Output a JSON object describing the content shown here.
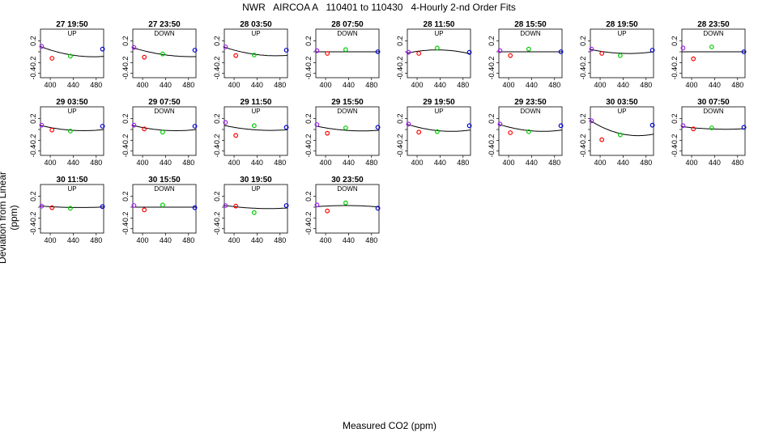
{
  "title": "NWR   AIRCOA A   110401 to 110430   4-Hourly 2-nd Order Fits",
  "chart_data": {
    "type": "scatter",
    "xlabel": "Measured CO2 (ppm)",
    "ylabel": "Deviation from Linear (ppm)",
    "xlim": [
      383,
      493
    ],
    "ylim": [
      -0.48,
      0.42
    ],
    "xticks": [
      400,
      440,
      480
    ],
    "yticks": [
      -0.4,
      -0.2,
      0.0,
      0.2
    ],
    "ytick_labels": [
      "-0.4",
      "-0.2",
      "",
      "0.2"
    ],
    "point_colors": [
      "#a020f0",
      "#ff0000",
      "#00cc00",
      "#0000cc"
    ],
    "line_color": "#000000",
    "panels": [
      {
        "title": "27 19:50",
        "dir": "UP",
        "x": [
          385,
          403,
          435,
          491
        ],
        "y": [
          0.1,
          -0.12,
          -0.08,
          0.05
        ],
        "fit": [
          0.09,
          -0.004,
          2.2e-05
        ]
      },
      {
        "title": "27 23:50",
        "dir": "DOWN",
        "x": [
          385,
          403,
          435,
          491
        ],
        "y": [
          0.08,
          -0.1,
          -0.04,
          0.03
        ],
        "fit": [
          0.07,
          -0.0032,
          1.6e-05
        ]
      },
      {
        "title": "28 03:50",
        "dir": "UP",
        "x": [
          385,
          403,
          435,
          491
        ],
        "y": [
          0.09,
          -0.07,
          -0.06,
          0.03
        ],
        "fit": [
          0.08,
          -0.0035,
          2e-05
        ]
      },
      {
        "title": "28 07:50",
        "dir": "DOWN",
        "x": [
          385,
          403,
          435,
          491
        ],
        "y": [
          0.02,
          -0.03,
          0.04,
          0.0
        ],
        "fit": [
          0.0,
          0.0,
          0.0
        ]
      },
      {
        "title": "28 11:50",
        "dir": "UP",
        "x": [
          385,
          403,
          435,
          491
        ],
        "y": [
          -0.01,
          -0.03,
          0.07,
          -0.01
        ],
        "fit": [
          -0.02,
          0.0022,
          -2.2e-05
        ]
      },
      {
        "title": "28 15:50",
        "dir": "DOWN",
        "x": [
          385,
          403,
          435,
          491
        ],
        "y": [
          0.02,
          -0.07,
          0.05,
          0.0
        ],
        "fit": [
          0.0,
          0.0,
          0.0
        ]
      },
      {
        "title": "28 19:50",
        "dir": "UP",
        "x": [
          385,
          403,
          435,
          491
        ],
        "y": [
          0.05,
          -0.03,
          -0.07,
          0.03
        ],
        "fit": [
          0.04,
          -0.0022,
          1.7e-05
        ]
      },
      {
        "title": "28 23:50",
        "dir": "DOWN",
        "x": [
          385,
          403,
          435,
          491
        ],
        "y": [
          0.07,
          -0.13,
          0.09,
          0.0
        ],
        "fit": [
          0.0,
          0.0,
          0.0
        ]
      },
      {
        "title": "29 03:50",
        "dir": "UP",
        "x": [
          385,
          403,
          435,
          491
        ],
        "y": [
          0.08,
          -0.01,
          -0.03,
          0.06
        ],
        "fit": [
          0.07,
          -0.0025,
          1.7e-05
        ]
      },
      {
        "title": "29 07:50",
        "dir": "DOWN",
        "x": [
          385,
          403,
          435,
          491
        ],
        "y": [
          0.08,
          0.01,
          -0.05,
          0.06
        ],
        "fit": [
          0.07,
          -0.0025,
          1.7e-05
        ]
      },
      {
        "title": "29 11:50",
        "dir": "UP",
        "x": [
          385,
          403,
          435,
          491
        ],
        "y": [
          0.13,
          -0.11,
          0.07,
          0.04
        ],
        "fit": [
          0.07,
          -0.0022,
          1.4e-05
        ]
      },
      {
        "title": "29 15:50",
        "dir": "DOWN",
        "x": [
          385,
          403,
          435,
          491
        ],
        "y": [
          0.09,
          -0.07,
          0.03,
          0.04
        ],
        "fit": [
          0.06,
          -0.0022,
          1.4e-05
        ]
      },
      {
        "title": "29 19:50",
        "dir": "UP",
        "x": [
          385,
          403,
          435,
          491
        ],
        "y": [
          0.1,
          -0.05,
          -0.04,
          0.07
        ],
        "fit": [
          0.09,
          -0.0033,
          2.2e-05
        ]
      },
      {
        "title": "29 23:50",
        "dir": "DOWN",
        "x": [
          385,
          403,
          435,
          491
        ],
        "y": [
          0.1,
          -0.06,
          -0.04,
          0.07
        ],
        "fit": [
          0.09,
          -0.0033,
          2.2e-05
        ]
      },
      {
        "title": "30 03:50",
        "dir": "UP",
        "x": [
          385,
          403,
          435,
          491
        ],
        "y": [
          0.16,
          -0.19,
          -0.1,
          0.08
        ],
        "fit": [
          0.15,
          -0.0065,
          4e-05
        ]
      },
      {
        "title": "30 07:50",
        "dir": "DOWN",
        "x": [
          385,
          403,
          435,
          491
        ],
        "y": [
          0.07,
          0.01,
          0.03,
          0.04
        ],
        "fit": [
          0.05,
          -0.0012,
          8e-06
        ]
      },
      {
        "title": "30 11:50",
        "dir": "UP",
        "x": [
          385,
          403,
          435,
          491
        ],
        "y": [
          0.02,
          -0.01,
          -0.02,
          0.01
        ],
        "fit": [
          0.02,
          -0.0008,
          6e-06
        ]
      },
      {
        "title": "30 15:50",
        "dir": "DOWN",
        "x": [
          385,
          403,
          435,
          491
        ],
        "y": [
          0.03,
          -0.05,
          0.04,
          -0.01
        ],
        "fit": [
          0.0,
          0.0,
          0.0
        ]
      },
      {
        "title": "30 19:50",
        "dir": "UP",
        "x": [
          385,
          403,
          435,
          491
        ],
        "y": [
          0.03,
          0.02,
          -0.1,
          0.03
        ],
        "fit": [
          0.03,
          -0.0015,
          1e-05
        ]
      },
      {
        "title": "30 23:50",
        "dir": "DOWN",
        "x": [
          385,
          403,
          435,
          491
        ],
        "y": [
          0.04,
          -0.07,
          0.08,
          -0.02
        ],
        "fit": [
          0.01,
          0.0008,
          -8e-06
        ]
      }
    ]
  }
}
